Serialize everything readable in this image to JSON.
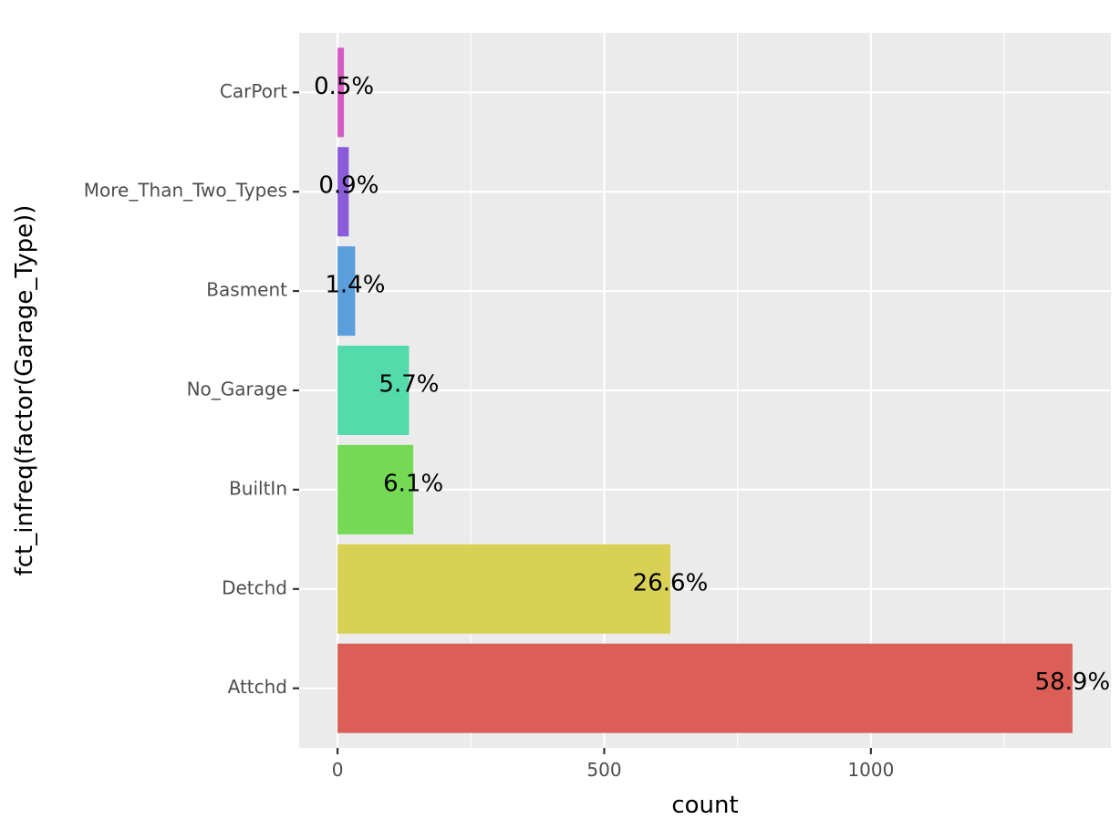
{
  "chart_data": {
    "type": "bar",
    "orientation": "horizontal",
    "xlabel": "count",
    "ylabel": "fct_infreq(factor(Garage_Type))",
    "xlim": [
      -72,
      1450
    ],
    "x_ticks": [
      0,
      500,
      1000
    ],
    "x_tick_labels": [
      "0",
      "500",
      "1000"
    ],
    "grid": true,
    "legend": "none",
    "categories": [
      "CarPort",
      "More_Than_Two_Types",
      "Basment",
      "No_Garage",
      "BuiltIn",
      "Detchd",
      "Attchd"
    ],
    "values": [
      12,
      21,
      33,
      134,
      142,
      624,
      1378
    ],
    "labels": [
      "0.5%",
      "0.9%",
      "1.4%",
      "5.7%",
      "6.1%",
      "26.6%",
      "58.9%"
    ],
    "colors": [
      "#D55BC3",
      "#8A5CDA",
      "#5A9EDC",
      "#55DAAB",
      "#74DA55",
      "#D9D056",
      "#DB5F57"
    ],
    "panel_background": "#EBEBEB",
    "grid_color": "#FFFFFF"
  }
}
